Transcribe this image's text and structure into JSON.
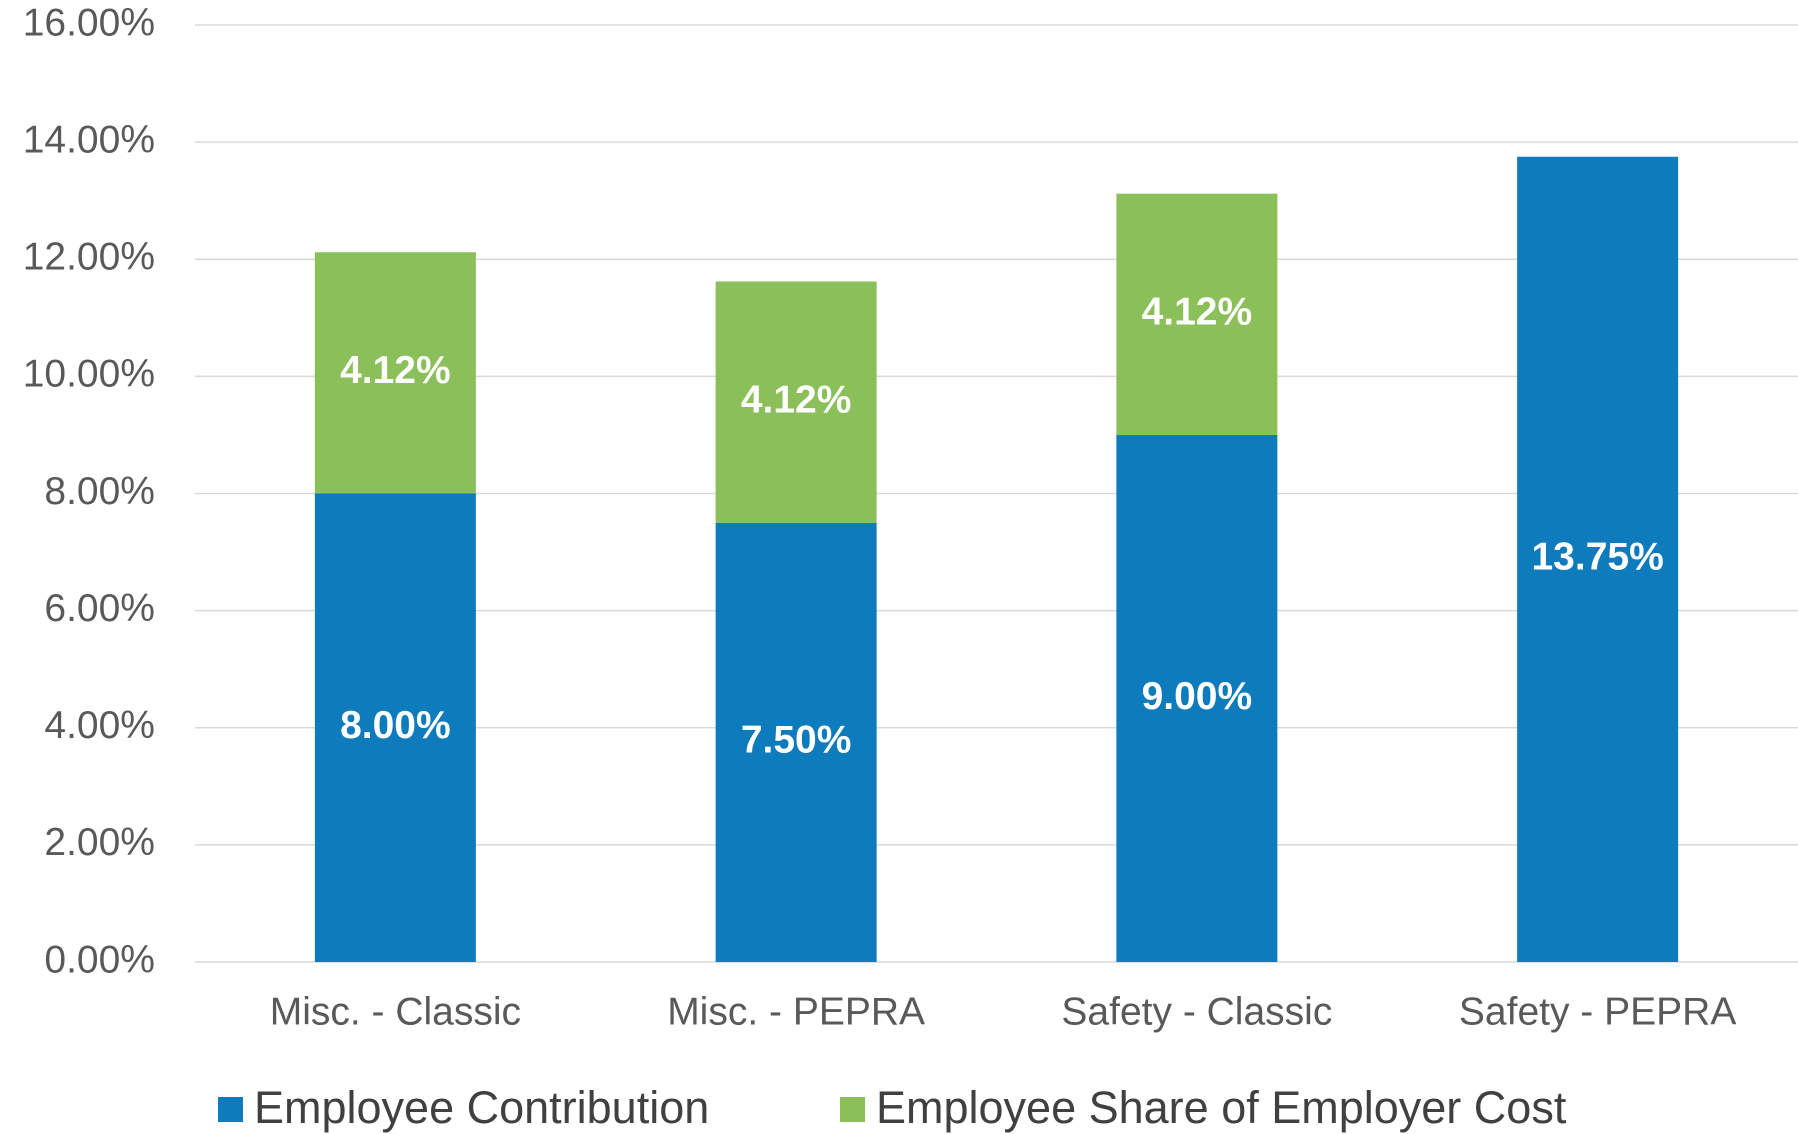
{
  "chart_data": {
    "type": "stacked_bar",
    "categories": [
      "Misc. - Classic",
      "Misc. - PEPRA",
      "Safety - Classic",
      "Safety - PEPRA"
    ],
    "series": [
      {
        "name": "Employee Contribution",
        "color": "#0e7bbd",
        "values": [
          8,
          7.5,
          9,
          13.75
        ],
        "value_labels": [
          "8.00%",
          "7.50%",
          "9.00%",
          "13.75%"
        ]
      },
      {
        "name": "Employee Share of Employer Cost",
        "color": "#8bbf5a",
        "values": [
          4.12,
          4.12,
          4.12,
          null
        ],
        "value_labels": [
          "4.12%",
          "4.12%",
          "4.12%",
          null
        ]
      }
    ],
    "ylim": [
      0,
      16
    ],
    "yticks": [
      {
        "value": 0,
        "label": "0.00%"
      },
      {
        "value": 2,
        "label": "2.00%"
      },
      {
        "value": 4,
        "label": "4.00%"
      },
      {
        "value": 6,
        "label": "6.00%"
      },
      {
        "value": 8,
        "label": "8.00%"
      },
      {
        "value": 10,
        "label": "10.00%"
      },
      {
        "value": 12,
        "label": "12.00%"
      },
      {
        "value": 14,
        "label": "14.00%"
      },
      {
        "value": 16,
        "label": "16.00%"
      }
    ],
    "grid": true,
    "legend": "bottom"
  }
}
